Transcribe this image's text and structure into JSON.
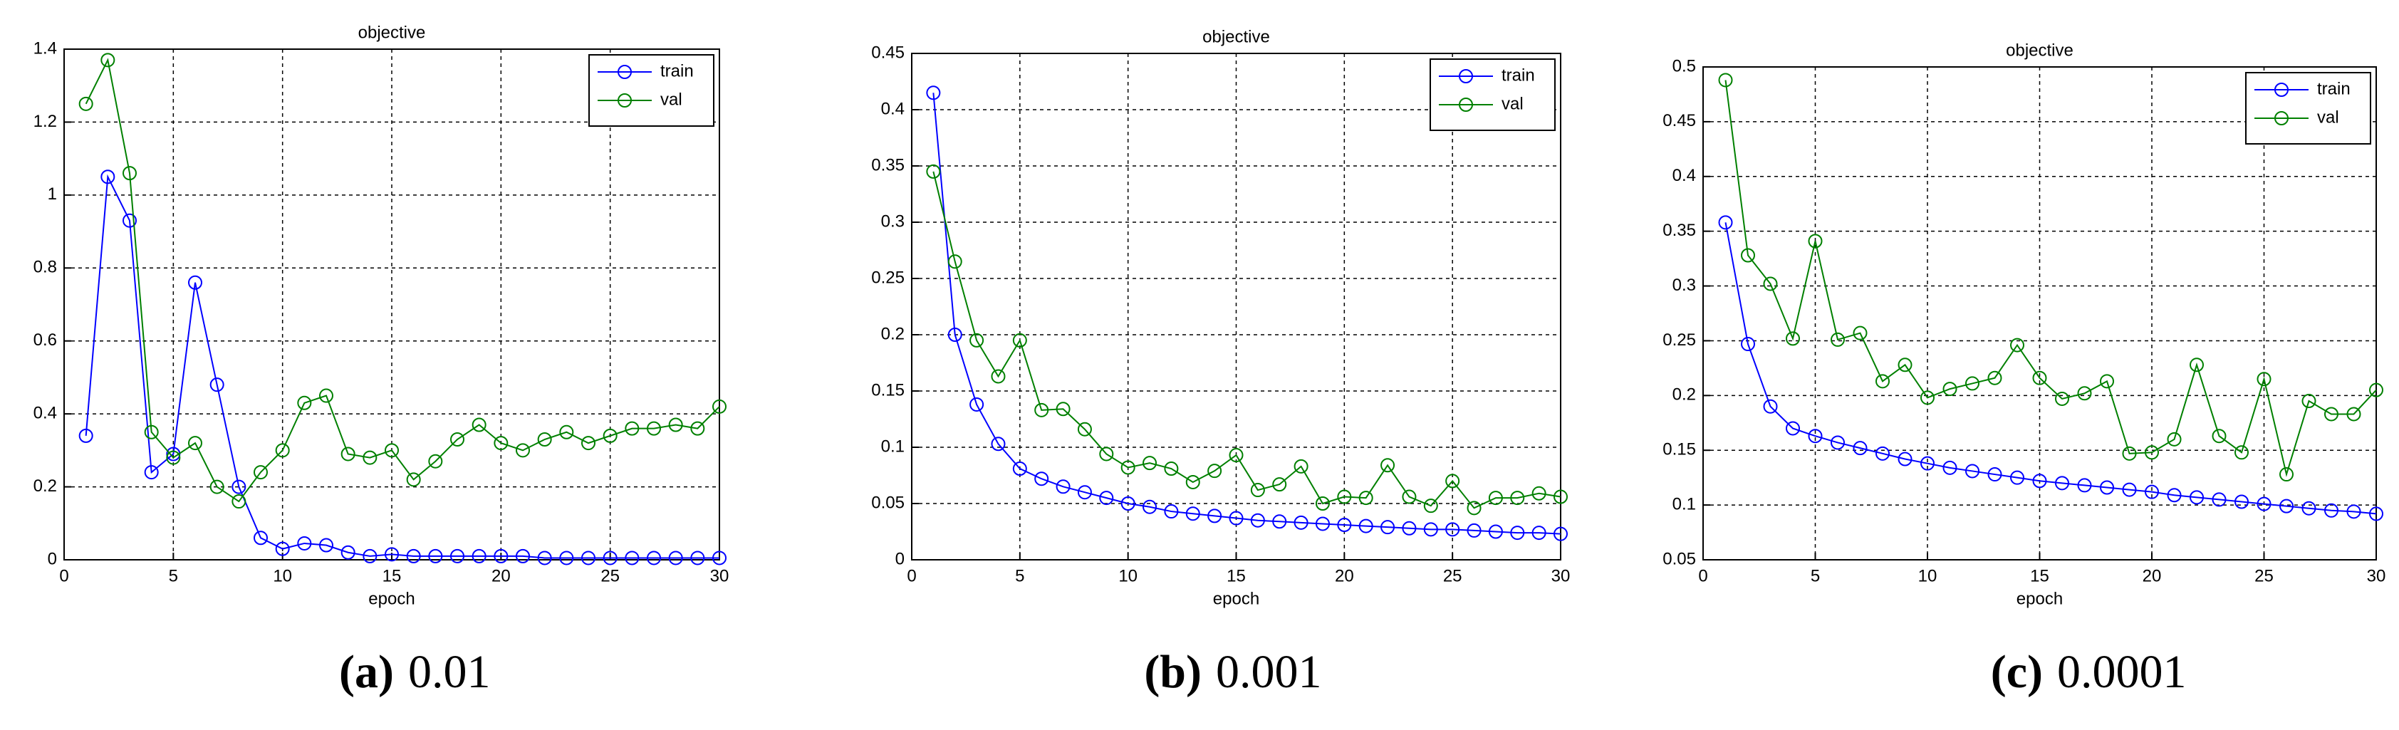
{
  "chart_data": [
    {
      "type": "line",
      "title": "objective",
      "x_label": "epoch",
      "caption_label": "(a)",
      "caption": "0.01",
      "x": [
        1,
        2,
        3,
        4,
        5,
        6,
        7,
        8,
        9,
        10,
        11,
        12,
        13,
        14,
        15,
        16,
        17,
        18,
        19,
        20,
        21,
        22,
        23,
        24,
        25,
        26,
        27,
        28,
        29,
        30
      ],
      "xlim": [
        0,
        30
      ],
      "xticks": [
        0,
        5,
        10,
        15,
        20,
        25,
        30
      ],
      "ylim": [
        0,
        1.4
      ],
      "yticks": [
        0,
        0.2,
        0.4,
        0.6,
        0.8,
        1,
        1.2,
        1.4
      ],
      "grid": true,
      "legend": "upper right",
      "series": [
        {
          "name": "train",
          "color": "#0000ff",
          "values": [
            0.34,
            1.05,
            0.93,
            0.24,
            0.29,
            0.76,
            0.48,
            0.2,
            0.06,
            0.03,
            0.045,
            0.04,
            0.02,
            0.01,
            0.015,
            0.01,
            0.01,
            0.01,
            0.01,
            0.01,
            0.01,
            0.005,
            0.005,
            0.005,
            0.005,
            0.005,
            0.005,
            0.005,
            0.005,
            0.005
          ]
        },
        {
          "name": "val",
          "color": "#008000",
          "values": [
            1.25,
            1.37,
            1.06,
            0.35,
            0.28,
            0.32,
            0.2,
            0.16,
            0.24,
            0.3,
            0.43,
            0.45,
            0.29,
            0.28,
            0.3,
            0.22,
            0.27,
            0.33,
            0.37,
            0.32,
            0.3,
            0.33,
            0.35,
            0.32,
            0.34,
            0.36,
            0.36,
            0.37,
            0.36,
            0.42
          ]
        }
      ]
    },
    {
      "type": "line",
      "title": "objective",
      "x_label": "epoch",
      "caption_label": "(b)",
      "caption": "0.001",
      "x": [
        1,
        2,
        3,
        4,
        5,
        6,
        7,
        8,
        9,
        10,
        11,
        12,
        13,
        14,
        15,
        16,
        17,
        18,
        19,
        20,
        21,
        22,
        23,
        24,
        25,
        26,
        27,
        28,
        29,
        30
      ],
      "xlim": [
        0,
        30
      ],
      "xticks": [
        0,
        5,
        10,
        15,
        20,
        25,
        30
      ],
      "ylim": [
        0,
        0.45
      ],
      "yticks": [
        0,
        0.05,
        0.1,
        0.15,
        0.2,
        0.25,
        0.3,
        0.35,
        0.4,
        0.45
      ],
      "grid": true,
      "legend": "upper right",
      "series": [
        {
          "name": "train",
          "color": "#0000ff",
          "values": [
            0.415,
            0.2,
            0.138,
            0.103,
            0.081,
            0.072,
            0.065,
            0.06,
            0.055,
            0.05,
            0.047,
            0.043,
            0.041,
            0.039,
            0.037,
            0.035,
            0.034,
            0.033,
            0.032,
            0.031,
            0.03,
            0.029,
            0.028,
            0.027,
            0.027,
            0.026,
            0.025,
            0.024,
            0.024,
            0.023
          ]
        },
        {
          "name": "val",
          "color": "#008000",
          "values": [
            0.345,
            0.265,
            0.195,
            0.163,
            0.195,
            0.133,
            0.134,
            0.116,
            0.094,
            0.082,
            0.086,
            0.081,
            0.069,
            0.079,
            0.093,
            0.062,
            0.067,
            0.083,
            0.05,
            0.056,
            0.055,
            0.084,
            0.056,
            0.048,
            0.07,
            0.046,
            0.055,
            0.055,
            0.059,
            0.056
          ]
        }
      ]
    },
    {
      "type": "line",
      "title": "objective",
      "x_label": "epoch",
      "caption_label": "(c)",
      "caption": "0.0001",
      "x": [
        1,
        2,
        3,
        4,
        5,
        6,
        7,
        8,
        9,
        10,
        11,
        12,
        13,
        14,
        15,
        16,
        17,
        18,
        19,
        20,
        21,
        22,
        23,
        24,
        25,
        26,
        27,
        28,
        29,
        30
      ],
      "xlim": [
        0,
        30
      ],
      "xticks": [
        0,
        5,
        10,
        15,
        20,
        25,
        30
      ],
      "ylim": [
        0.05,
        0.5
      ],
      "yticks": [
        0.05,
        0.1,
        0.15,
        0.2,
        0.25,
        0.3,
        0.35,
        0.4,
        0.45,
        0.5
      ],
      "grid": true,
      "legend": "upper right",
      "series": [
        {
          "name": "train",
          "color": "#0000ff",
          "values": [
            0.358,
            0.247,
            0.19,
            0.17,
            0.163,
            0.157,
            0.152,
            0.147,
            0.142,
            0.138,
            0.134,
            0.131,
            0.128,
            0.125,
            0.122,
            0.12,
            0.118,
            0.116,
            0.114,
            0.112,
            0.109,
            0.107,
            0.105,
            0.103,
            0.101,
            0.099,
            0.097,
            0.095,
            0.094,
            0.092
          ]
        },
        {
          "name": "val",
          "color": "#008000",
          "values": [
            0.488,
            0.328,
            0.302,
            0.252,
            0.341,
            0.251,
            0.257,
            0.213,
            0.228,
            0.198,
            0.206,
            0.211,
            0.216,
            0.246,
            0.216,
            0.197,
            0.202,
            0.213,
            0.147,
            0.148,
            0.16,
            0.228,
            0.163,
            0.148,
            0.215,
            0.128,
            0.195,
            0.183,
            0.183,
            0.205
          ]
        }
      ]
    }
  ]
}
